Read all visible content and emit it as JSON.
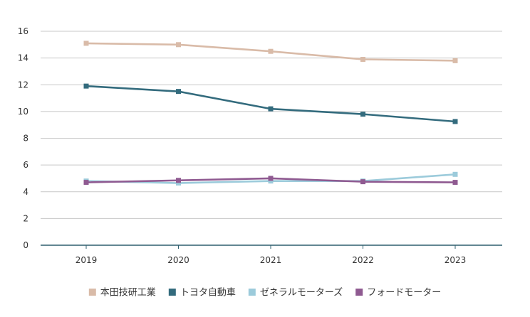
{
  "chart_data": {
    "type": "line",
    "title": "",
    "xlabel": "",
    "ylabel": "",
    "categories": [
      "2019",
      "2020",
      "2021",
      "2022",
      "2023"
    ],
    "ylim": [
      0,
      16
    ],
    "yticks": [
      0,
      2,
      4,
      6,
      8,
      10,
      12,
      14,
      16
    ],
    "grid": true,
    "legend_position": "bottom",
    "series": [
      {
        "name": "本田技研工業",
        "color": "#d9bba8",
        "values": [
          15.1,
          15.0,
          14.5,
          13.9,
          13.8
        ]
      },
      {
        "name": "トヨタ自動車",
        "color": "#336b7d",
        "values": [
          11.9,
          11.5,
          10.2,
          9.8,
          9.25
        ]
      },
      {
        "name": "ゼネラルモーターズ",
        "color": "#9ccbdb",
        "values": [
          4.8,
          4.65,
          4.8,
          4.8,
          5.3
        ]
      },
      {
        "name": "フォードモーター",
        "color": "#8f5a91",
        "values": [
          4.7,
          4.85,
          5.0,
          4.75,
          4.7
        ]
      }
    ]
  }
}
